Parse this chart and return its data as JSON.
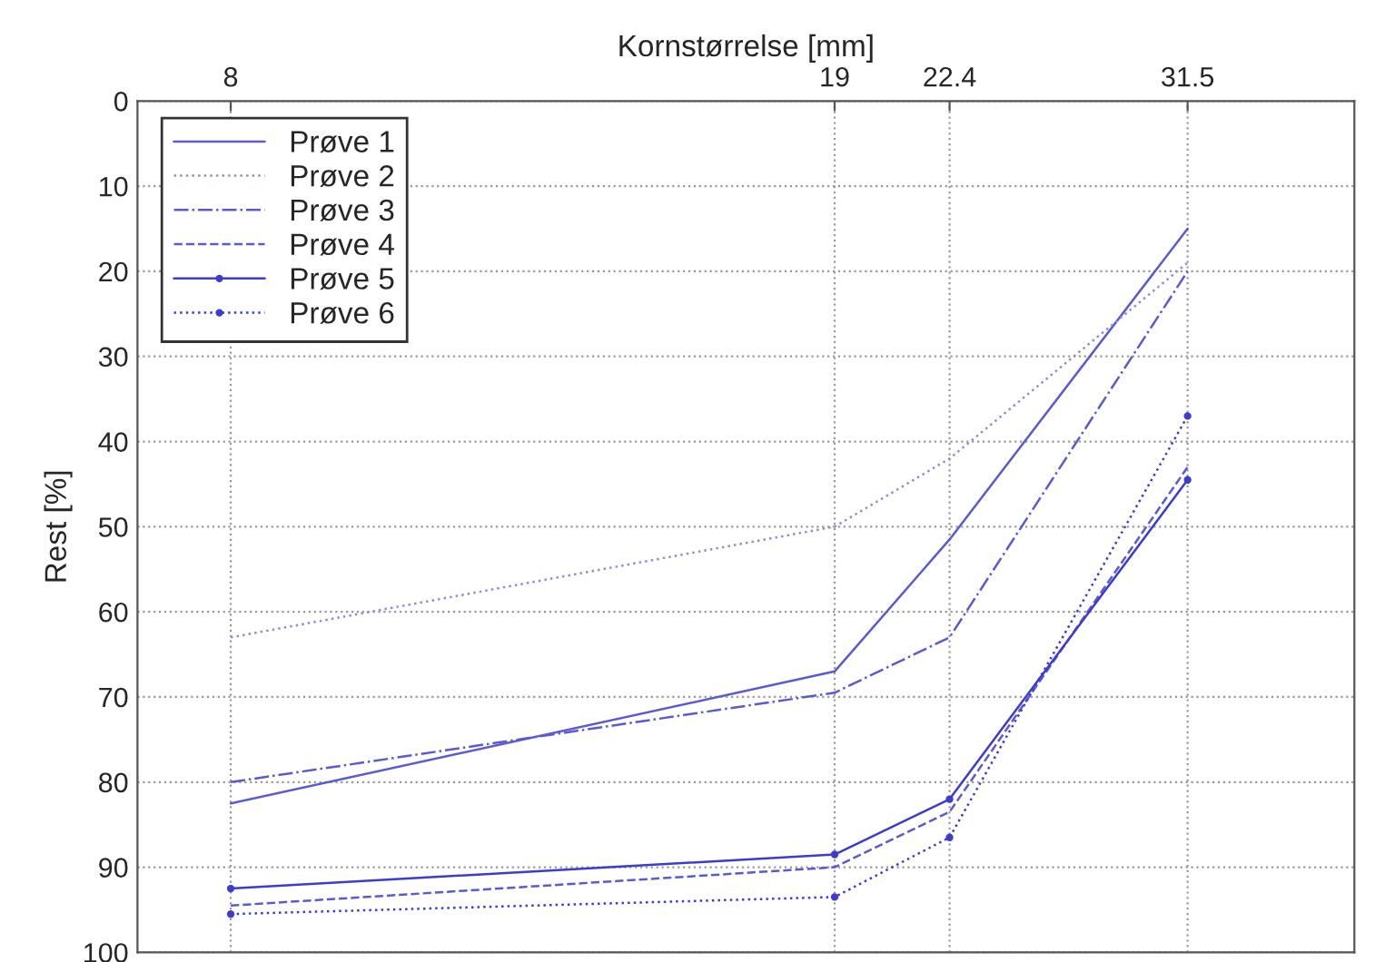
{
  "chart_data": {
    "type": "line",
    "xlabel": "Kornstørrelse [mm]",
    "ylabel": "Rest [%]",
    "x": [
      8,
      19,
      22.4,
      31.5
    ],
    "log": "x",
    "xlim": [
      7,
      40
    ],
    "xticks": [
      8,
      19,
      22.4,
      31.5
    ],
    "ylim": [
      100,
      0
    ],
    "yticks": [
      0,
      10,
      20,
      30,
      40,
      50,
      60,
      70,
      80,
      90,
      100
    ],
    "grid": true,
    "legend": "top left",
    "series": [
      {
        "name": "Prøve 1",
        "color": "#5a5ad2",
        "values": [
          82.5,
          67,
          51.5,
          15
        ],
        "line_style": "solid",
        "marker": "none"
      },
      {
        "name": "Prøve 2",
        "color": "#8c8ce0",
        "values": [
          63,
          50,
          42,
          19
        ],
        "line_style": "dotted",
        "marker": "none"
      },
      {
        "name": "Prøve 3",
        "color": "#5a5ad2",
        "values": [
          80,
          69.5,
          63,
          20
        ],
        "line_style": "dashdot",
        "marker": "none"
      },
      {
        "name": "Prøve 4",
        "color": "#5a5ad2",
        "values": [
          94.5,
          90,
          83.5,
          43
        ],
        "line_style": "dashed",
        "marker": "none"
      },
      {
        "name": "Prøve 5",
        "color": "#3c3cd2",
        "values": [
          92.5,
          88.5,
          82,
          44.5
        ],
        "line_style": "solid",
        "marker": "circle"
      },
      {
        "name": "Prøve 6",
        "color": "#3c3cd2",
        "values": [
          95.5,
          93.5,
          86.5,
          37
        ],
        "line_style": "dotted",
        "marker": "circle"
      }
    ]
  }
}
